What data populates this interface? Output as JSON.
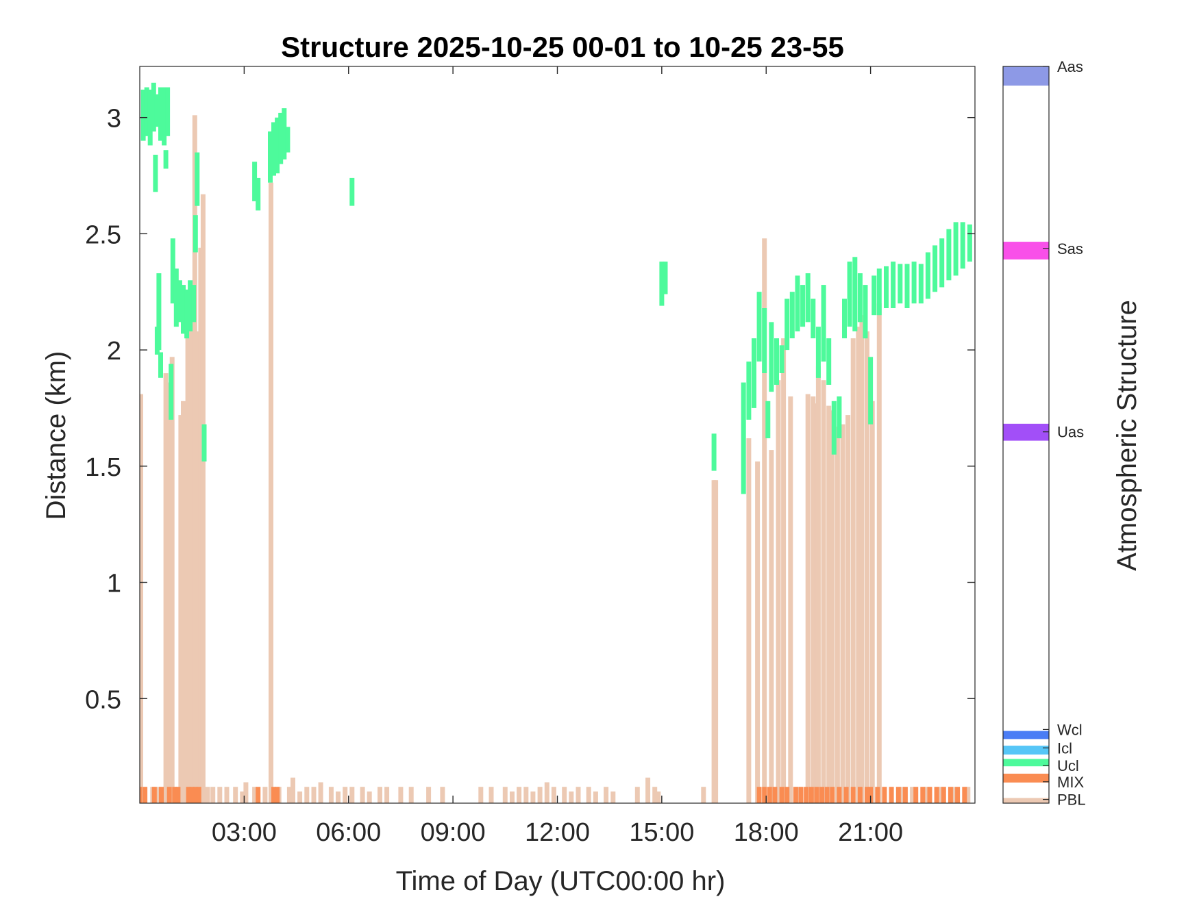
{
  "chart_data": {
    "type": "heatmap",
    "title": "Structure 2025-10-25 00-01 to 10-25 23-55",
    "xlabel": "Time of Day (UTC00:00 hr)",
    "ylabel": "Distance (km)",
    "colorbar_label": "Atmospheric Structure",
    "x_unit": "hour",
    "xlim": [
      0,
      24
    ],
    "ylim": [
      0.05,
      3.22
    ],
    "x_ticks": [
      {
        "value": 3,
        "label": "03:00"
      },
      {
        "value": 6,
        "label": "06:00"
      },
      {
        "value": 9,
        "label": "09:00"
      },
      {
        "value": 12,
        "label": "12:00"
      },
      {
        "value": 15,
        "label": "15:00"
      },
      {
        "value": 18,
        "label": "18:00"
      },
      {
        "value": 21,
        "label": "21:00"
      }
    ],
    "y_ticks": [
      {
        "value": 0.5,
        "label": "0.5"
      },
      {
        "value": 1,
        "label": "1"
      },
      {
        "value": 1.5,
        "label": "1.5"
      },
      {
        "value": 2,
        "label": "2"
      },
      {
        "value": 2.5,
        "label": "2.5"
      },
      {
        "value": 3,
        "label": "3"
      }
    ],
    "grid": false,
    "legend": "colorbar-right",
    "categories": [
      {
        "code": "PBL",
        "color": "#ecc9b3"
      },
      {
        "code": "MIX",
        "color": "#fa8c52"
      },
      {
        "code": "Ucl",
        "color": "#4dfa9b"
      },
      {
        "code": "Icl",
        "color": "#56c6f7"
      },
      {
        "code": "Wcl",
        "color": "#4b7df5"
      },
      {
        "code": "Uas",
        "color": "#a24ff8"
      },
      {
        "code": "Sas",
        "color": "#f950e9"
      },
      {
        "code": "Aas",
        "color": "#8d99e6"
      }
    ],
    "colorbar_ticks": [
      {
        "label": "PBL",
        "color_index": 0
      },
      {
        "label": "MIX",
        "color_index": 1
      },
      {
        "label": "Ucl",
        "color_index": 2
      },
      {
        "label": "Icl",
        "color_index": 3
      },
      {
        "label": "Wcl",
        "color_index": 4
      },
      {
        "label": "Uas",
        "color_index": 5
      },
      {
        "label": "Sas",
        "color_index": 6
      },
      {
        "label": "Aas",
        "color_index": 7
      }
    ],
    "series": [
      {
        "name": "PBL",
        "values": [
          [
            0.03,
            0.05,
            1.81
          ],
          [
            0.37,
            0.05,
            0.12
          ],
          [
            0.55,
            0.05,
            0.12
          ],
          [
            0.75,
            0.05,
            1.9
          ],
          [
            0.88,
            0.05,
            1.86
          ],
          [
            0.93,
            0.05,
            1.97
          ],
          [
            1.05,
            0.05,
            0.12
          ],
          [
            1.18,
            0.05,
            1.72
          ],
          [
            1.25,
            0.05,
            1.78
          ],
          [
            1.38,
            0.05,
            2.12
          ],
          [
            1.45,
            0.05,
            2.1
          ],
          [
            1.58,
            0.05,
            3.01
          ],
          [
            1.65,
            0.05,
            2.08
          ],
          [
            1.75,
            0.05,
            2.44
          ],
          [
            1.82,
            0.05,
            2.67
          ],
          [
            1.95,
            0.05,
            0.12
          ],
          [
            2.1,
            0.05,
            0.12
          ],
          [
            2.3,
            0.05,
            0.12
          ],
          [
            2.5,
            0.05,
            0.12
          ],
          [
            2.75,
            0.05,
            0.12
          ],
          [
            2.95,
            0.05,
            0.1
          ],
          [
            3.05,
            0.05,
            0.14
          ],
          [
            3.3,
            0.05,
            0.12
          ],
          [
            3.6,
            0.05,
            0.12
          ],
          [
            3.77,
            0.05,
            2.72
          ],
          [
            4.0,
            0.05,
            0.12
          ],
          [
            4.3,
            0.05,
            0.12
          ],
          [
            4.4,
            0.05,
            0.16
          ],
          [
            4.6,
            0.05,
            0.1
          ],
          [
            4.8,
            0.05,
            0.12
          ],
          [
            5.0,
            0.05,
            0.12
          ],
          [
            5.2,
            0.05,
            0.14
          ],
          [
            5.5,
            0.05,
            0.12
          ],
          [
            5.7,
            0.05,
            0.1
          ],
          [
            5.9,
            0.05,
            0.12
          ],
          [
            6.1,
            0.05,
            0.12
          ],
          [
            6.4,
            0.05,
            0.12
          ],
          [
            6.6,
            0.05,
            0.1
          ],
          [
            6.9,
            0.05,
            0.12
          ],
          [
            7.1,
            0.05,
            0.12
          ],
          [
            7.5,
            0.05,
            0.12
          ],
          [
            7.8,
            0.05,
            0.12
          ],
          [
            8.3,
            0.05,
            0.12
          ],
          [
            8.7,
            0.05,
            0.12
          ],
          [
            9.8,
            0.05,
            0.12
          ],
          [
            10.1,
            0.05,
            0.12
          ],
          [
            10.5,
            0.05,
            0.12
          ],
          [
            10.7,
            0.05,
            0.1
          ],
          [
            10.9,
            0.05,
            0.12
          ],
          [
            11.1,
            0.05,
            0.12
          ],
          [
            11.3,
            0.05,
            0.1
          ],
          [
            11.5,
            0.05,
            0.12
          ],
          [
            11.7,
            0.05,
            0.14
          ],
          [
            11.9,
            0.05,
            0.12
          ],
          [
            12.2,
            0.05,
            0.12
          ],
          [
            12.4,
            0.05,
            0.1
          ],
          [
            12.6,
            0.05,
            0.12
          ],
          [
            12.9,
            0.05,
            0.12
          ],
          [
            13.1,
            0.05,
            0.1
          ],
          [
            13.4,
            0.05,
            0.12
          ],
          [
            13.6,
            0.05,
            0.1
          ],
          [
            14.3,
            0.05,
            0.12
          ],
          [
            14.6,
            0.05,
            0.16
          ],
          [
            14.8,
            0.05,
            0.12
          ],
          [
            14.9,
            0.05,
            0.1
          ],
          [
            16.2,
            0.05,
            0.12
          ],
          [
            16.5,
            0.05,
            1.44
          ],
          [
            16.55,
            0.05,
            1.44
          ],
          [
            17.5,
            0.05,
            1.62
          ],
          [
            17.75,
            0.05,
            1.52
          ],
          [
            17.95,
            0.05,
            2.48
          ],
          [
            18.15,
            0.05,
            1.57
          ],
          [
            18.35,
            0.05,
            1.87
          ],
          [
            18.5,
            0.05,
            2.05
          ],
          [
            18.7,
            0.05,
            1.8
          ],
          [
            18.9,
            0.05,
            0.12
          ],
          [
            19.2,
            0.05,
            1.81
          ],
          [
            19.35,
            0.05,
            1.8
          ],
          [
            19.45,
            0.05,
            1.77
          ],
          [
            19.5,
            0.05,
            1.93
          ],
          [
            19.65,
            0.05,
            1.87
          ],
          [
            19.8,
            0.05,
            1.76
          ],
          [
            19.9,
            0.05,
            1.74
          ],
          [
            20.05,
            0.05,
            1.67
          ],
          [
            20.2,
            0.05,
            1.68
          ],
          [
            20.35,
            0.05,
            1.72
          ],
          [
            20.5,
            0.05,
            2.05
          ],
          [
            20.65,
            0.05,
            2.1
          ],
          [
            20.75,
            0.05,
            2.15
          ],
          [
            20.9,
            0.05,
            2.08
          ],
          [
            21.05,
            0.05,
            1.78
          ],
          [
            21.25,
            0.05,
            2.2
          ],
          [
            21.9,
            0.05,
            0.12
          ],
          [
            22.2,
            0.05,
            0.12
          ],
          [
            22.6,
            0.05,
            0.12
          ],
          [
            23.0,
            0.05,
            0.12
          ],
          [
            23.4,
            0.05,
            0.12
          ],
          [
            23.8,
            0.05,
            0.12
          ]
        ]
      },
      {
        "name": "MIX",
        "values": [
          [
            0.0,
            0.05,
            0.12
          ],
          [
            0.15,
            0.05,
            0.12
          ],
          [
            0.42,
            0.05,
            0.12
          ],
          [
            0.62,
            0.05,
            0.12
          ],
          [
            0.85,
            0.05,
            0.12
          ],
          [
            1.0,
            0.05,
            0.12
          ],
          [
            1.1,
            0.05,
            0.12
          ],
          [
            1.4,
            0.05,
            0.12
          ],
          [
            1.5,
            0.05,
            0.12
          ],
          [
            1.6,
            0.05,
            0.12
          ],
          [
            1.7,
            0.05,
            0.12
          ],
          [
            3.4,
            0.05,
            0.12
          ],
          [
            3.85,
            0.05,
            0.12
          ],
          [
            3.95,
            0.05,
            0.12
          ],
          [
            17.8,
            0.05,
            0.12
          ],
          [
            17.95,
            0.05,
            0.12
          ],
          [
            18.1,
            0.05,
            0.12
          ],
          [
            18.25,
            0.05,
            0.12
          ],
          [
            18.45,
            0.05,
            0.12
          ],
          [
            18.6,
            0.05,
            0.12
          ],
          [
            18.85,
            0.05,
            0.12
          ],
          [
            19.0,
            0.05,
            0.12
          ],
          [
            19.15,
            0.05,
            0.12
          ],
          [
            19.3,
            0.05,
            0.12
          ],
          [
            19.45,
            0.05,
            0.12
          ],
          [
            19.6,
            0.05,
            0.12
          ],
          [
            19.75,
            0.05,
            0.12
          ],
          [
            19.9,
            0.05,
            0.12
          ],
          [
            20.1,
            0.05,
            0.12
          ],
          [
            20.3,
            0.05,
            0.12
          ],
          [
            20.5,
            0.05,
            0.12
          ],
          [
            20.7,
            0.05,
            0.12
          ],
          [
            20.9,
            0.05,
            0.12
          ],
          [
            21.0,
            0.05,
            0.12
          ],
          [
            21.2,
            0.05,
            0.12
          ],
          [
            21.4,
            0.05,
            0.12
          ],
          [
            21.6,
            0.05,
            0.12
          ],
          [
            21.8,
            0.05,
            0.12
          ],
          [
            22.0,
            0.05,
            0.12
          ],
          [
            22.3,
            0.05,
            0.12
          ],
          [
            22.5,
            0.05,
            0.12
          ],
          [
            22.7,
            0.05,
            0.12
          ],
          [
            22.9,
            0.05,
            0.12
          ],
          [
            23.1,
            0.05,
            0.12
          ],
          [
            23.3,
            0.05,
            0.12
          ],
          [
            23.5,
            0.05,
            0.12
          ],
          [
            23.7,
            0.05,
            0.12
          ]
        ]
      },
      {
        "name": "Ucl",
        "values": [
          [
            0.1,
            2.9,
            3.12
          ],
          [
            0.2,
            2.92,
            3.13
          ],
          [
            0.3,
            2.88,
            3.12
          ],
          [
            0.4,
            2.94,
            3.15
          ],
          [
            0.5,
            2.96,
            3.1
          ],
          [
            0.6,
            2.9,
            3.13
          ],
          [
            0.7,
            2.88,
            3.13
          ],
          [
            0.8,
            2.92,
            3.13
          ],
          [
            0.45,
            2.68,
            2.84
          ],
          [
            0.5,
            1.98,
            2.1
          ],
          [
            0.55,
            2.0,
            2.33
          ],
          [
            0.6,
            1.88,
            1.99
          ],
          [
            0.75,
            2.78,
            2.86
          ],
          [
            0.9,
            1.7,
            1.94
          ],
          [
            0.95,
            2.2,
            2.48
          ],
          [
            1.05,
            2.1,
            2.35
          ],
          [
            1.15,
            2.12,
            2.3
          ],
          [
            1.25,
            2.07,
            2.28
          ],
          [
            1.35,
            2.05,
            2.26
          ],
          [
            1.45,
            2.08,
            2.3
          ],
          [
            1.55,
            2.12,
            2.28
          ],
          [
            1.6,
            2.42,
            2.58
          ],
          [
            1.65,
            2.62,
            2.85
          ],
          [
            1.85,
            1.52,
            1.68
          ],
          [
            3.3,
            2.64,
            2.81
          ],
          [
            3.4,
            2.6,
            2.74
          ],
          [
            3.75,
            2.72,
            2.94
          ],
          [
            3.85,
            2.75,
            2.98
          ],
          [
            3.95,
            2.76,
            3.0
          ],
          [
            4.05,
            2.8,
            3.02
          ],
          [
            4.15,
            2.82,
            3.04
          ],
          [
            4.25,
            2.85,
            2.96
          ],
          [
            6.1,
            2.62,
            2.74
          ],
          [
            15.0,
            2.19,
            2.38
          ],
          [
            15.1,
            2.24,
            2.38
          ],
          [
            16.5,
            1.48,
            1.64
          ],
          [
            17.35,
            1.38,
            1.86
          ],
          [
            17.5,
            1.7,
            1.95
          ],
          [
            17.65,
            1.75,
            2.05
          ],
          [
            17.8,
            1.95,
            2.25
          ],
          [
            17.95,
            1.9,
            2.18
          ],
          [
            18.05,
            1.62,
            1.78
          ],
          [
            18.15,
            1.82,
            2.12
          ],
          [
            18.3,
            1.85,
            2.05
          ],
          [
            18.45,
            1.9,
            2.02
          ],
          [
            18.6,
            2.0,
            2.22
          ],
          [
            18.75,
            2.05,
            2.25
          ],
          [
            18.9,
            2.08,
            2.32
          ],
          [
            19.05,
            2.1,
            2.28
          ],
          [
            19.2,
            2.12,
            2.33
          ],
          [
            19.35,
            2.05,
            2.22
          ],
          [
            19.5,
            1.88,
            2.1
          ],
          [
            19.65,
            1.95,
            2.28
          ],
          [
            19.8,
            1.85,
            2.05
          ],
          [
            19.95,
            1.55,
            1.78
          ],
          [
            20.1,
            1.62,
            1.8
          ],
          [
            20.25,
            2.05,
            2.22
          ],
          [
            20.4,
            2.1,
            2.38
          ],
          [
            20.55,
            2.08,
            2.4
          ],
          [
            20.7,
            2.12,
            2.33
          ],
          [
            20.85,
            2.05,
            2.28
          ],
          [
            21.0,
            1.68,
            1.97
          ],
          [
            21.1,
            2.15,
            2.32
          ],
          [
            21.25,
            2.15,
            2.35
          ],
          [
            21.45,
            2.18,
            2.36
          ],
          [
            21.65,
            2.18,
            2.38
          ],
          [
            21.85,
            2.2,
            2.37
          ],
          [
            22.05,
            2.18,
            2.37
          ],
          [
            22.25,
            2.2,
            2.38
          ],
          [
            22.45,
            2.2,
            2.37
          ],
          [
            22.65,
            2.22,
            2.42
          ],
          [
            22.85,
            2.25,
            2.45
          ],
          [
            23.05,
            2.27,
            2.48
          ],
          [
            23.25,
            2.3,
            2.52
          ],
          [
            23.45,
            2.32,
            2.55
          ],
          [
            23.65,
            2.35,
            2.55
          ],
          [
            23.85,
            2.38,
            2.54
          ]
        ]
      }
    ]
  }
}
